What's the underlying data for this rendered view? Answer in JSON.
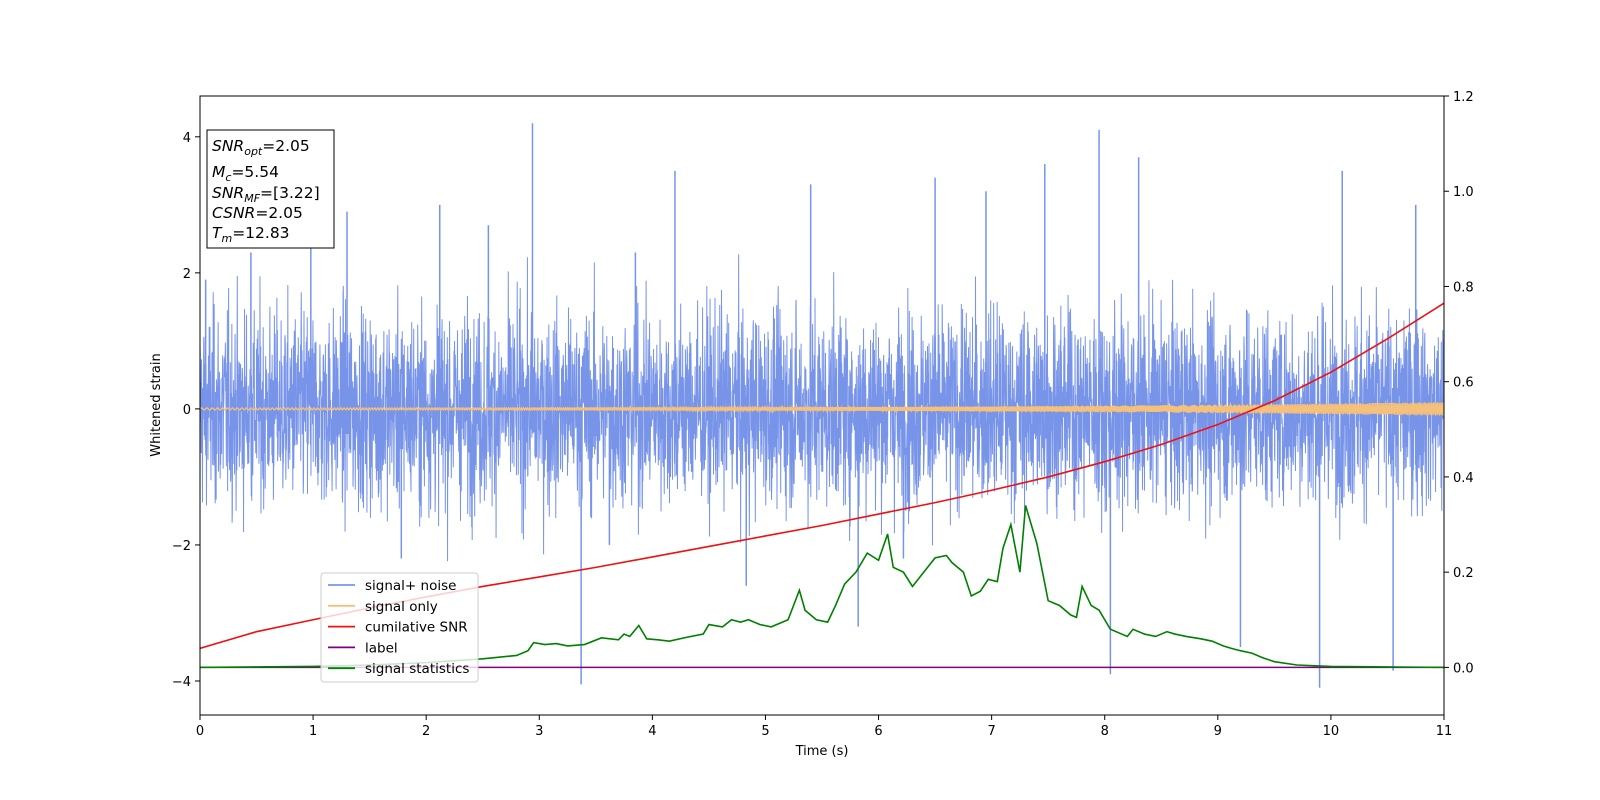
{
  "chart_data": {
    "type": "line",
    "xlabel": "Time (s)",
    "ylabel": "Whitened strain",
    "xlim": [
      0,
      11
    ],
    "ylim": [
      -4.5,
      4.6
    ],
    "y2lim": [
      -0.1,
      1.2
    ],
    "xticks": [
      "0",
      "1",
      "2",
      "3",
      "4",
      "5",
      "6",
      "7",
      "8",
      "9",
      "10",
      "11"
    ],
    "yticks": [
      "−4",
      "−2",
      "0",
      "2",
      "4"
    ],
    "y2ticks": [
      "0.0",
      "0.2",
      "0.4",
      "0.6",
      "0.8",
      "1.0",
      "1.2"
    ],
    "grid": false,
    "legend_position": "lower-left",
    "annotations": [
      {
        "base": "SNR",
        "sub": "opt",
        "value": "=2.05"
      },
      {
        "base": "M",
        "sub": "c",
        "value": "=5.54"
      },
      {
        "base": "SNR",
        "sub": "MF",
        "value": "=[3.22]"
      },
      {
        "base": "CSNR",
        "sub": "",
        "value": "=2.05"
      },
      {
        "base": "T",
        "sub": "m",
        "value": "=12.83"
      }
    ],
    "series": [
      {
        "name": "signal+ noise",
        "axis": "left",
        "color": "#7794e9",
        "amplitude": 1.0,
        "range": [
          -4.1,
          4.2
        ],
        "spike_samples": [
          [
            0.05,
            1.9
          ],
          [
            0.45,
            2.3
          ],
          [
            0.98,
            2.9
          ],
          [
            1.3,
            2.9
          ],
          [
            1.78,
            -2.2
          ],
          [
            2.12,
            3.0
          ],
          [
            2.55,
            2.7
          ],
          [
            2.94,
            4.2
          ],
          [
            3.37,
            -4.05
          ],
          [
            3.62,
            -2.0
          ],
          [
            3.85,
            2.3
          ],
          [
            4.2,
            3.5
          ],
          [
            4.83,
            -2.6
          ],
          [
            5.4,
            3.3
          ],
          [
            5.82,
            -3.2
          ],
          [
            6.22,
            -2.2
          ],
          [
            6.5,
            3.4
          ],
          [
            6.95,
            3.2
          ],
          [
            7.47,
            3.6
          ],
          [
            8.05,
            -3.9
          ],
          [
            7.95,
            4.1
          ],
          [
            8.3,
            3.7
          ],
          [
            9.2,
            -3.5
          ],
          [
            9.9,
            -4.1
          ],
          [
            10.55,
            -3.85
          ],
          [
            10.1,
            3.5
          ],
          [
            10.75,
            3.0
          ]
        ]
      },
      {
        "name": "signal only",
        "axis": "left",
        "color": "#f5c07a",
        "amplitude_start": 0.015,
        "amplitude_end": 0.1
      },
      {
        "name": "cumilative SNR",
        "axis": "right",
        "color": "#ee1111",
        "x": [
          0,
          0.5,
          1,
          1.5,
          2,
          2.5,
          3,
          3.5,
          4,
          4.5,
          5,
          5.5,
          6,
          6.5,
          7,
          7.5,
          8,
          8.5,
          9,
          9.5,
          10,
          10.5,
          11
        ],
        "y": [
          0.04,
          0.075,
          0.1,
          0.125,
          0.148,
          0.17,
          0.19,
          0.21,
          0.232,
          0.254,
          0.276,
          0.298,
          0.322,
          0.346,
          0.372,
          0.4,
          0.432,
          0.468,
          0.51,
          0.56,
          0.62,
          0.69,
          0.765
        ]
      },
      {
        "name": "label",
        "axis": "right",
        "color": "#800080",
        "x": [
          0,
          11
        ],
        "y": [
          0.0,
          0.0
        ]
      },
      {
        "name": "signal statistics",
        "axis": "right",
        "color": "#008000",
        "x": [
          0,
          1.0,
          1.5,
          2.0,
          2.5,
          2.8,
          2.9,
          2.95,
          3.05,
          3.15,
          3.25,
          3.4,
          3.55,
          3.7,
          3.75,
          3.8,
          3.88,
          3.95,
          4.05,
          4.15,
          4.3,
          4.45,
          4.5,
          4.62,
          4.7,
          4.78,
          4.85,
          4.95,
          5.05,
          5.2,
          5.3,
          5.35,
          5.45,
          5.55,
          5.62,
          5.7,
          5.8,
          5.9,
          6.0,
          6.08,
          6.13,
          6.22,
          6.3,
          6.4,
          6.5,
          6.6,
          6.65,
          6.75,
          6.82,
          6.9,
          6.97,
          7.05,
          7.1,
          7.17,
          7.25,
          7.3,
          7.4,
          7.5,
          7.6,
          7.7,
          7.75,
          7.8,
          7.88,
          7.95,
          8.05,
          8.15,
          8.2,
          8.25,
          8.35,
          8.45,
          8.55,
          8.62,
          8.72,
          8.85,
          8.95,
          9.05,
          9.12,
          9.2,
          9.3,
          9.4,
          9.5,
          9.7,
          10.0,
          10.5,
          11
        ],
        "y": [
          0.0,
          0.002,
          0.005,
          0.01,
          0.018,
          0.025,
          0.035,
          0.052,
          0.048,
          0.05,
          0.045,
          0.048,
          0.062,
          0.058,
          0.07,
          0.065,
          0.088,
          0.06,
          0.058,
          0.055,
          0.063,
          0.07,
          0.09,
          0.085,
          0.1,
          0.095,
          0.1,
          0.09,
          0.085,
          0.1,
          0.162,
          0.12,
          0.1,
          0.095,
          0.13,
          0.175,
          0.2,
          0.24,
          0.225,
          0.28,
          0.21,
          0.2,
          0.17,
          0.2,
          0.23,
          0.235,
          0.22,
          0.2,
          0.15,
          0.16,
          0.185,
          0.18,
          0.25,
          0.3,
          0.2,
          0.34,
          0.26,
          0.14,
          0.13,
          0.11,
          0.105,
          0.17,
          0.13,
          0.12,
          0.08,
          0.07,
          0.065,
          0.08,
          0.07,
          0.065,
          0.075,
          0.07,
          0.065,
          0.06,
          0.055,
          0.045,
          0.04,
          0.035,
          0.03,
          0.02,
          0.012,
          0.005,
          0.002,
          0.001,
          0.0
        ]
      }
    ]
  }
}
